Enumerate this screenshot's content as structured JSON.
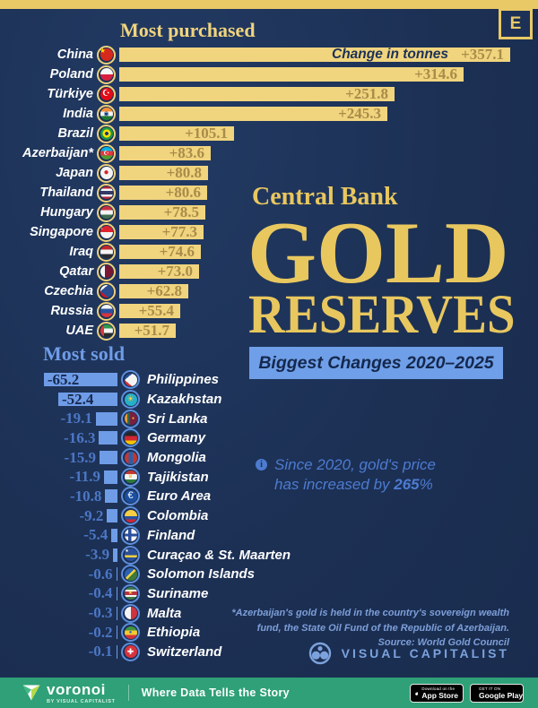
{
  "meta": {
    "badge_letter": "E"
  },
  "title_block": {
    "kicker": "Central Bank",
    "line1": "GOLD",
    "line2": "RESERVES",
    "banner": "Biggest Changes 2020–2025"
  },
  "note": {
    "line1": "Since 2020, gold's price",
    "line2_pre": "has increased by ",
    "line2_bold": "265",
    "line2_post": "%"
  },
  "footnote": {
    "line1": "*Azerbaijan's gold is held in the country's sovereign wealth",
    "line2": "fund, the State Oil Fund of the Republic of Azerbaijan.",
    "line3": "Source: World Gold Council"
  },
  "vc": {
    "wordmark": "VISUAL CAPITALIST"
  },
  "footer": {
    "brand": "voronoi",
    "sub": "BY VISUAL CAPITALIST",
    "tagline": "Where Data Tells the Story",
    "appstore_top": "Download on the",
    "appstore_bottom": "App Store",
    "gplay_top": "GET IT ON",
    "gplay_bottom": "Google Play"
  },
  "colors": {
    "background": "#1c3054",
    "gold_strip": "#e9c966",
    "gold_bar": "#f0d47e",
    "gold_title": "#e8c75f",
    "bar_value_bronze": "#a98c49",
    "blue_bar": "#6f9ce7",
    "blue_banner": "#6f9fe8",
    "note_blue": "#4d7bd0",
    "footnote_blue": "#7d9ed8",
    "footer_green": "#2fa077"
  },
  "purchased": {
    "title": "Most purchased",
    "annotation": "Change in tonnes",
    "rows": [
      {
        "c": "China",
        "v": "+357.1",
        "n": 357.1,
        "bg": "#d7281c",
        "g": "★",
        "gc": "#ffde00",
        "gs": 8,
        "gx": -4,
        "gy": -4
      },
      {
        "c": "Poland",
        "v": "+314.6",
        "n": 314.6,
        "bg": "linear-gradient(#f6f6f6 50%, #d81e3f 50%)"
      },
      {
        "c": "Türkiye",
        "v": "+251.8",
        "n": 251.8,
        "bg": "#e30a17",
        "g": "☪",
        "gc": "#ffffff",
        "gs": 10
      },
      {
        "c": "India",
        "v": "+245.3",
        "n": 245.3,
        "bg": "linear-gradient(#f59038 33%, #f3f3f3 33% 67%, #1a7a2e 67%)",
        "g": "◉",
        "gc": "#123d7a",
        "gs": 7
      },
      {
        "c": "Brazil",
        "v": "+105.1",
        "n": 105.1,
        "bg": "radial-gradient(circle at 50% 50%, #1b3a7a 0 21%, #fede00 21% 46%, #1c9b44 46%)"
      },
      {
        "c": "Azerbaijan*",
        "v": "+83.6",
        "n": 83.6,
        "bg": "linear-gradient(#00b5e2 33%, #e8363d 33% 67%, #4f9e2f 67%)",
        "g": "☪",
        "gc": "#ffffff",
        "gs": 7
      },
      {
        "c": "Japan",
        "v": "+80.8",
        "n": 80.8,
        "bg": "#f4f4f4",
        "g": "●",
        "gc": "#d9222a",
        "gs": 10
      },
      {
        "c": "Thailand",
        "v": "+80.6",
        "n": 80.6,
        "bg": "linear-gradient(#b5233a 0 18%, #f4f5f8 18% 34%, #333a66 34% 66%, #f4f5f8 66% 82%, #b5233a 82%)"
      },
      {
        "c": "Hungary",
        "v": "+78.5",
        "n": 78.5,
        "bg": "linear-gradient(#c8313e 33%, #f3f3f3 33% 67%, #3d6e4b 67%)"
      },
      {
        "c": "Singapore",
        "v": "+77.3",
        "n": 77.3,
        "bg": "linear-gradient(#e0242f 50%, #f4f4f4 50%)",
        "g": "☾",
        "gc": "#ffffff",
        "gs": 6,
        "gx": -4,
        "gy": -4
      },
      {
        "c": "Iraq",
        "v": "+74.6",
        "n": 74.6,
        "bg": "linear-gradient(#c3272b 33%, #f4f4f4 33% 67%, #2b2b2b 67%)"
      },
      {
        "c": "Qatar",
        "v": "+73.0",
        "n": 73.0,
        "bg": "linear-gradient(90deg, #f4f4f4 34%, #7a1733 34%)"
      },
      {
        "c": "Czechia",
        "v": "+62.8",
        "n": 62.8,
        "bg": "conic-gradient(from 50deg at 0% 50%, #2a4d8f 0 80deg, rgba(0,0,0,0) 80deg), linear-gradient(#f4f4f4 50%, #d7141a 50%)"
      },
      {
        "c": "Russia",
        "v": "+55.4",
        "n": 55.4,
        "bg": "linear-gradient(#f4f4f4 33%, #2a52a0 33% 67%, #d7343c 67%)"
      },
      {
        "c": "UAE",
        "v": "+51.7",
        "n": 51.7,
        "bg": "linear-gradient(90deg, #d93a38 28%, rgba(0,0,0,0) 28%), linear-gradient(#2f9a4c 33%, #f4f4f4 33% 67%, #2b2b2b 67%)"
      }
    ]
  },
  "sold": {
    "title": "Most sold",
    "rows": [
      {
        "c": "Philippines",
        "v": "-65.2",
        "n": 65.2,
        "bg": "conic-gradient(from 50deg at 0% 50%, #f4f4f4 0 80deg, rgba(0,0,0,0) 80deg), linear-gradient(#2a52a0 50%, #d7343c 50%)"
      },
      {
        "c": "Kazakhstan",
        "v": "-52.4",
        "n": 52.4,
        "bg": "#27b0c9",
        "g": "☀",
        "gc": "#ffd23d",
        "gs": 9
      },
      {
        "c": "Sri Lanka",
        "v": "-19.1",
        "n": 19.1,
        "bg": "linear-gradient(90deg, #e89a33 0 20%, #2d6b51 20% 38%, #7c1f3d 38%)",
        "g": "●",
        "gc": "#f0b429",
        "gs": 5,
        "gx": 3
      },
      {
        "c": "Germany",
        "v": "-16.3",
        "n": 16.3,
        "bg": "linear-gradient(#262626 33%, #d22730 33% 67%, #f3c300 67%)"
      },
      {
        "c": "Mongolia",
        "v": "-15.9",
        "n": 15.9,
        "bg": "linear-gradient(90deg, #c23732 0 33%, #2d60a5 33% 67%, #c23732 67%)"
      },
      {
        "c": "Tajikistan",
        "v": "-11.9",
        "n": 11.9,
        "bg": "linear-gradient(#c23732 30%, #f4f4f4 30% 70%, #2e7a3c 70%)",
        "g": "♛",
        "gc": "#f0b429",
        "gs": 6
      },
      {
        "c": "Euro Area",
        "v": "-10.8",
        "n": 10.8,
        "bg": "#1b4fa0",
        "g": "€",
        "gc": "#ffffff",
        "gs": 11
      },
      {
        "c": "Colombia",
        "v": "-9.2",
        "n": 9.2,
        "bg": "linear-gradient(#f7cf46 50%, #2a52a0 50% 75%, #cf2735 75%)"
      },
      {
        "c": "Finland",
        "v": "-5.4",
        "n": 5.4,
        "bg": "linear-gradient(rgba(0,0,0,0) 38%, #2b4f9e 38% 62%, rgba(0,0,0,0) 62%), linear-gradient(90deg, #f4f4f4 30%, #2b4f9e 30% 52%, #f4f4f4 52%)"
      },
      {
        "c": "Curaçao & St. Maarten",
        "v": "-3.9",
        "n": 3.9,
        "bg": "linear-gradient(#2a4f9b 55%, #f3d23c 55% 70%, #2a4f9b 70%)",
        "g": "★",
        "gc": "#ffffff",
        "gs": 5,
        "gx": -4,
        "gy": -4
      },
      {
        "c": "Solomon Islands",
        "v": "-0.6",
        "n": 0.6,
        "bg": "linear-gradient(135deg, #2a63b5 0 42%, #f3d23c 42% 55%, #3e7a3a 55%)"
      },
      {
        "c": "Suriname",
        "v": "-0.4",
        "n": 0.4,
        "bg": "linear-gradient(#3c7a44 22%, #f4f4f4 22% 36%, #b83442 36% 64%, #f4f4f4 64% 78%, #3c7a44 78%)",
        "g": "★",
        "gc": "#f3d23c",
        "gs": 6
      },
      {
        "c": "Malta",
        "v": "-0.3",
        "n": 0.3,
        "bg": "linear-gradient(90deg, #f4f4f4 50%, #cf3341 50%)"
      },
      {
        "c": "Ethiopia",
        "v": "-0.2",
        "n": 0.2,
        "bg": "linear-gradient(#3f9441 33%, #f3cb2e 33% 67%, #d2333c 67%)",
        "g": "●",
        "gc": "#3f62c4",
        "gs": 6
      },
      {
        "c": "Switzerland",
        "v": "-0.1",
        "n": 0.1,
        "bg": "#d7343c",
        "g": "✚",
        "gc": "#ffffff",
        "gs": 9
      }
    ]
  },
  "chart_data": [
    {
      "type": "bar",
      "orientation": "horizontal",
      "title": "Most purchased",
      "unit_annotation": "Change in tonnes",
      "categories": [
        "China",
        "Poland",
        "Türkiye",
        "India",
        "Brazil",
        "Azerbaijan*",
        "Japan",
        "Thailand",
        "Hungary",
        "Singapore",
        "Iraq",
        "Qatar",
        "Czechia",
        "Russia",
        "UAE"
      ],
      "values": [
        357.1,
        314.6,
        251.8,
        245.3,
        105.1,
        83.6,
        80.8,
        80.6,
        78.5,
        77.3,
        74.6,
        73.0,
        62.8,
        55.4,
        51.7
      ],
      "xlim": [
        0,
        360
      ],
      "bar_color": "#f0d47e"
    },
    {
      "type": "bar",
      "orientation": "horizontal",
      "title": "Most sold",
      "unit_annotation": "Change in tonnes",
      "categories": [
        "Philippines",
        "Kazakhstan",
        "Sri Lanka",
        "Germany",
        "Mongolia",
        "Tajikistan",
        "Euro Area",
        "Colombia",
        "Finland",
        "Curaçao & St. Maarten",
        "Solomon Islands",
        "Suriname",
        "Malta",
        "Ethiopia",
        "Switzerland"
      ],
      "values": [
        -65.2,
        -52.4,
        -19.1,
        -16.3,
        -15.9,
        -11.9,
        -10.8,
        -9.2,
        -5.4,
        -3.9,
        -0.6,
        -0.4,
        -0.3,
        -0.2,
        -0.1
      ],
      "xlim": [
        -66,
        0
      ],
      "bar_color": "#6f9ce7"
    }
  ]
}
